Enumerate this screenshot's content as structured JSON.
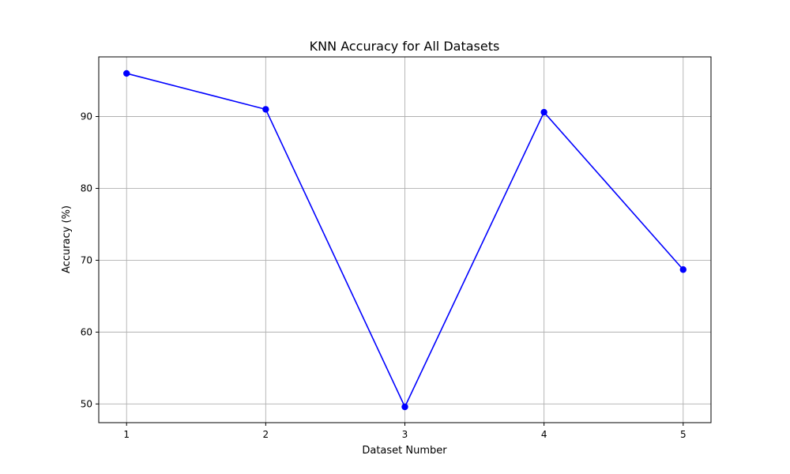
{
  "chart_data": {
    "type": "line",
    "title": "KNN Accuracy for All Datasets",
    "xlabel": "Dataset Number",
    "ylabel": "Accuracy (%)",
    "x": [
      1,
      2,
      3,
      4,
      5
    ],
    "x_ticks": [
      "1",
      "2",
      "3",
      "4",
      "5"
    ],
    "y_ticks": [
      50,
      60,
      70,
      80,
      90
    ],
    "xlim": [
      0.8,
      5.2
    ],
    "ylim": [
      47.4,
      98.3
    ],
    "grid": true,
    "series": [
      {
        "values": [
          96.0,
          91.0,
          49.6,
          90.6,
          68.7
        ],
        "color": "#0000ff",
        "marker": "circle"
      }
    ]
  }
}
